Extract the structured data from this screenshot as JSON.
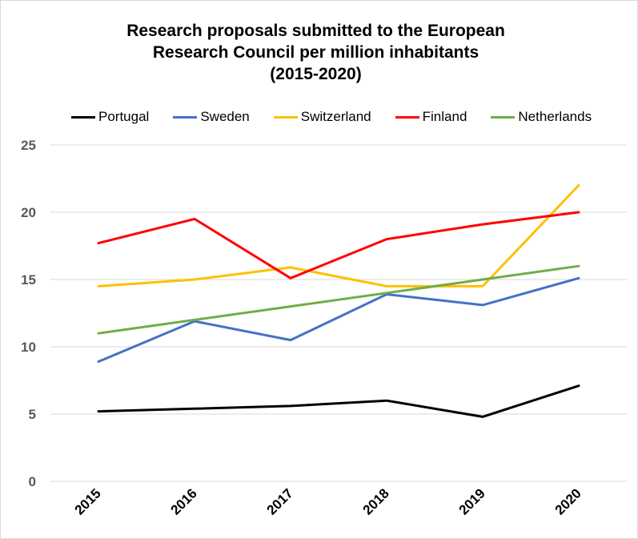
{
  "chart_data": {
    "type": "line",
    "title": "Research  proposals submitted to the European\nResearch  Council per million inhabitants\n(2015-2020)",
    "categories": [
      "2015",
      "2016",
      "2017",
      "2018",
      "2019",
      "2020"
    ],
    "ylim": [
      0,
      25
    ],
    "yticks": [
      "0",
      "5",
      "10",
      "15",
      "20",
      "25"
    ],
    "grid": "horizontal",
    "legend_position": "top",
    "series": [
      {
        "name": "Portugal",
        "color": "#000000",
        "values": [
          5.2,
          5.4,
          5.6,
          6.0,
          4.8,
          7.1
        ]
      },
      {
        "name": "Sweden",
        "color": "#4472c4",
        "values": [
          8.9,
          11.9,
          10.5,
          13.9,
          13.1,
          15.1
        ]
      },
      {
        "name": "Switzerland",
        "color": "#ffc000",
        "values": [
          14.5,
          15.0,
          15.9,
          14.5,
          14.5,
          22.0
        ]
      },
      {
        "name": "Finland",
        "color": "#ff0000",
        "values": [
          17.7,
          19.5,
          15.1,
          18.0,
          19.1,
          20.0
        ]
      },
      {
        "name": "Netherlands",
        "color": "#70ad47",
        "values": [
          11.0,
          12.0,
          13.0,
          14.0,
          15.0,
          16.0
        ]
      }
    ],
    "colors": {
      "grid": "#d9d9d9",
      "axis_text": "#595959"
    }
  }
}
